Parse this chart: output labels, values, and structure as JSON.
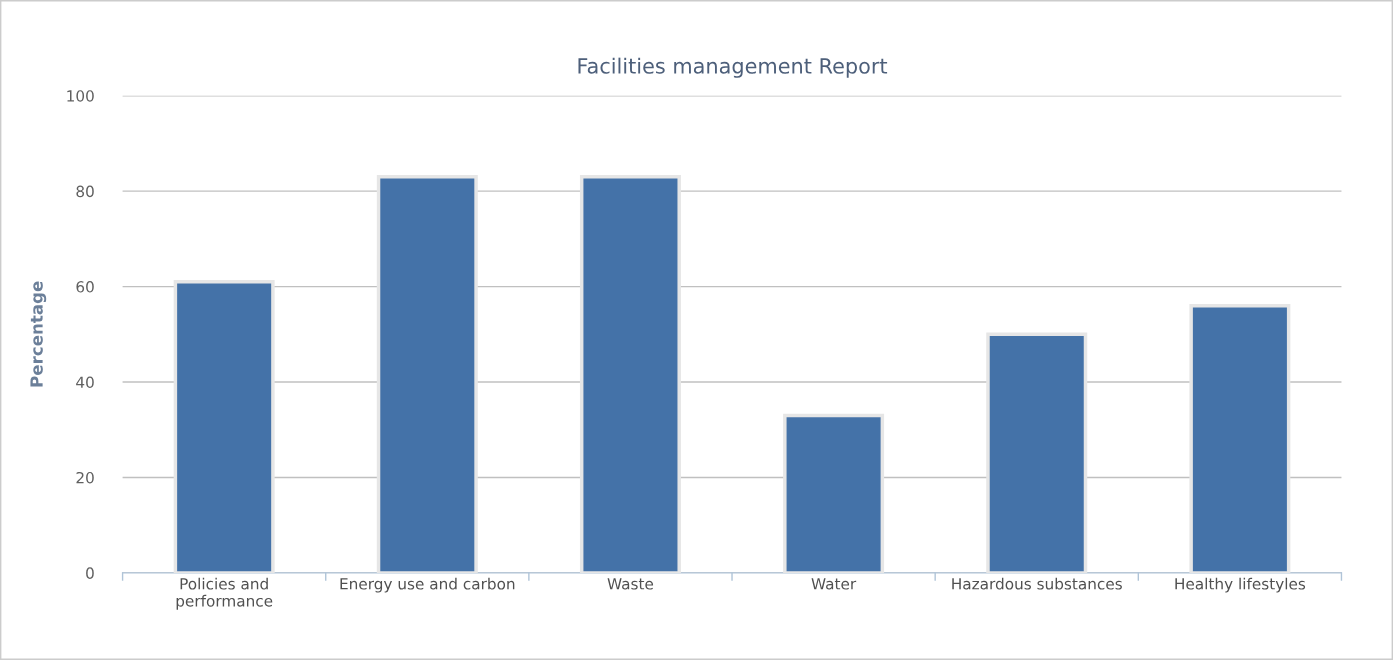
{
  "chart_data": {
    "type": "bar",
    "title": "Facilities management Report",
    "ylabel": "Percentage",
    "categories": [
      "Policies and\nperformance",
      "Energy use and carbon",
      "Waste",
      "Water",
      "Hazardous substances",
      "Healthy lifestyles"
    ],
    "values": [
      61,
      83,
      83,
      33,
      50,
      56
    ],
    "color": "#4472a8",
    "ylim": [
      0,
      100
    ],
    "yticks": [
      0,
      20,
      40,
      60,
      80,
      100
    ],
    "grid": "y",
    "legend": false
  }
}
